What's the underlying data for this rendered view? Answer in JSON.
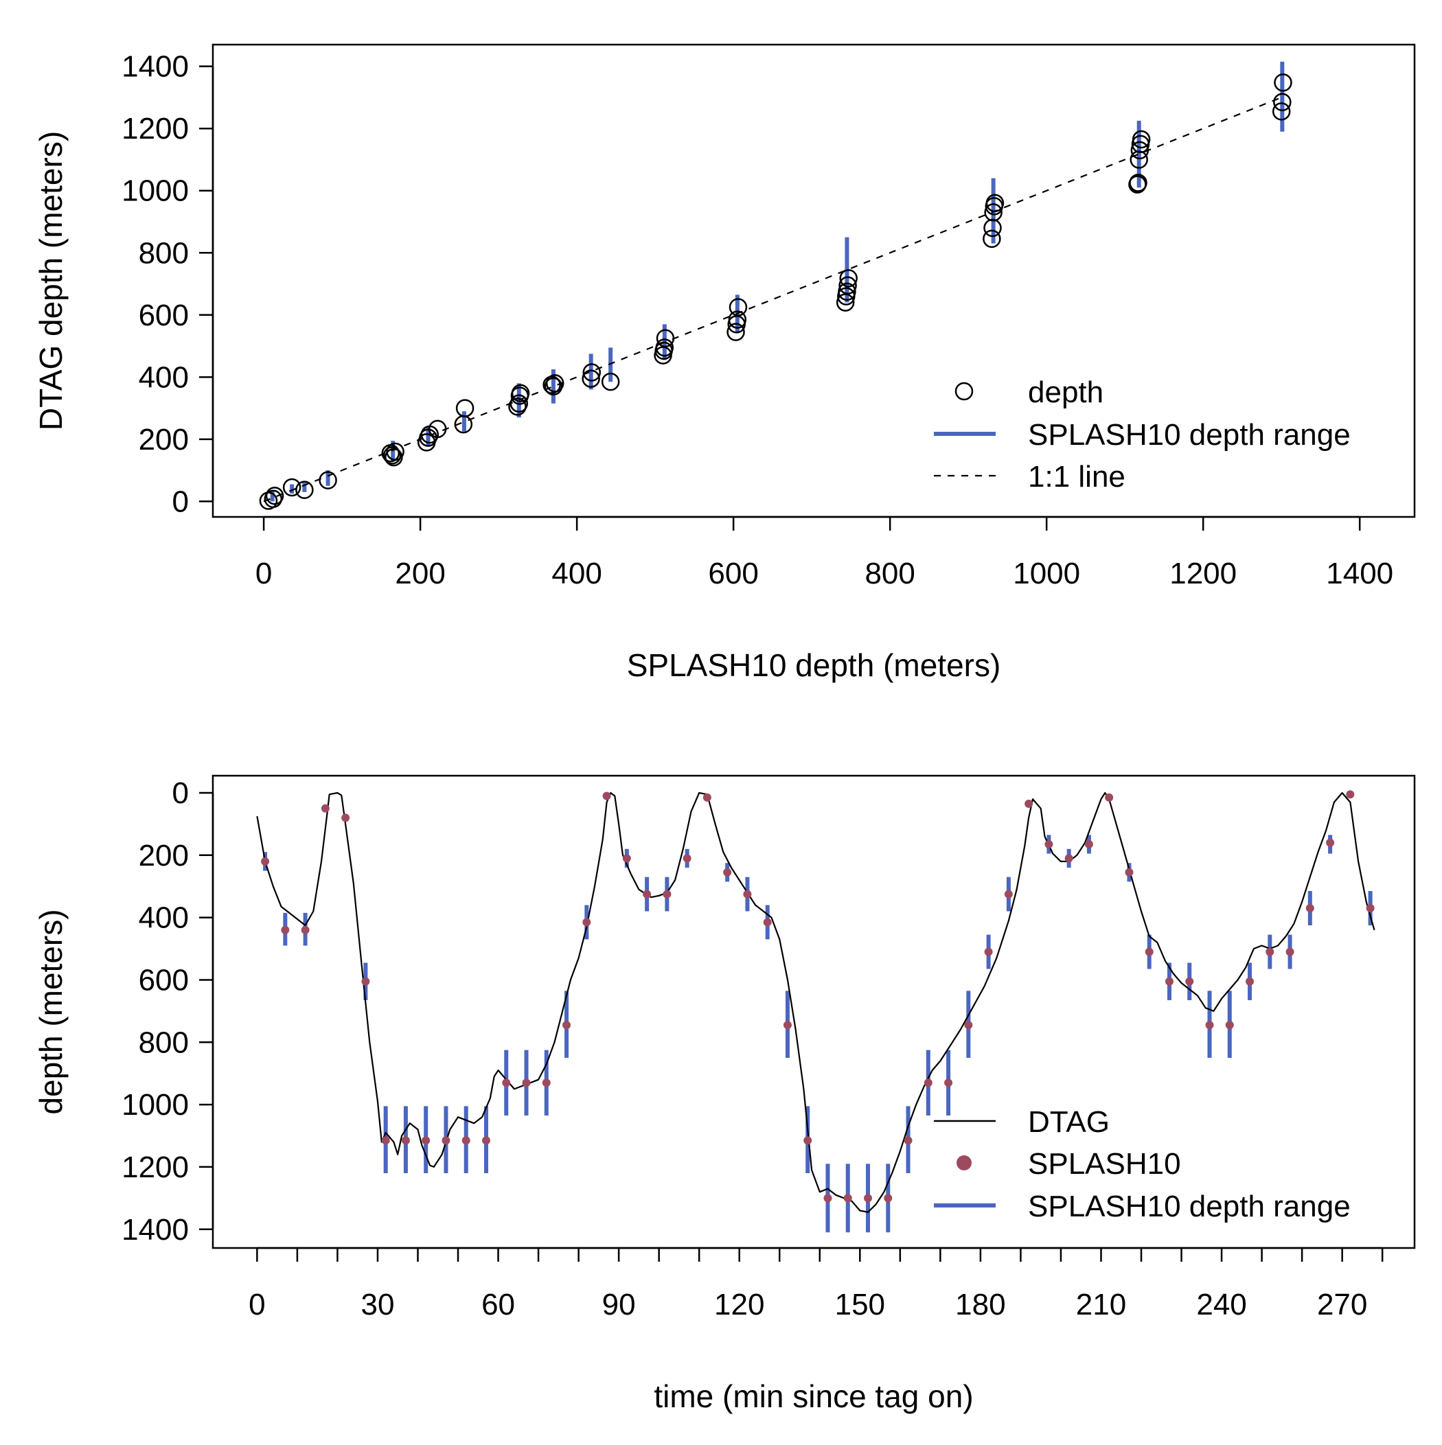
{
  "colors": {
    "range": "#4a66c0",
    "splash": "#9e4a5e",
    "ink": "#000000"
  },
  "chart_data": [
    {
      "type": "scatter",
      "xlabel": "SPLASH10 depth (meters)",
      "ylabel": "DTAG depth (meters)",
      "xlim": [
        -65,
        1470
      ],
      "ylim": [
        -50,
        1470
      ],
      "xticks": [
        0,
        200,
        400,
        600,
        800,
        1000,
        1200,
        1400
      ],
      "yticks": [
        0,
        200,
        400,
        600,
        800,
        1000,
        1200,
        1400
      ],
      "legend": {
        "position": "bottom-right",
        "entries": [
          "depth",
          "SPLASH10 depth range",
          "1:1 line"
        ]
      },
      "grid": false,
      "one_to_one_line": true,
      "points": [
        [
          6,
          2
        ],
        [
          12,
          8
        ],
        [
          14,
          18
        ],
        [
          36,
          45
        ],
        [
          52,
          37
        ],
        [
          82,
          68
        ],
        [
          162,
          155
        ],
        [
          164,
          148
        ],
        [
          166,
          142
        ],
        [
          168,
          160
        ],
        [
          208,
          190
        ],
        [
          210,
          205
        ],
        [
          212,
          215
        ],
        [
          222,
          233
        ],
        [
          255,
          248
        ],
        [
          257,
          300
        ],
        [
          324,
          305
        ],
        [
          326,
          315
        ],
        [
          327,
          340
        ],
        [
          328,
          348
        ],
        [
          368,
          375
        ],
        [
          370,
          370
        ],
        [
          372,
          380
        ],
        [
          418,
          395
        ],
        [
          419,
          415
        ],
        [
          443,
          385
        ],
        [
          510,
          470
        ],
        [
          511,
          485
        ],
        [
          512,
          495
        ],
        [
          513,
          525
        ],
        [
          603,
          545
        ],
        [
          604,
          570
        ],
        [
          605,
          585
        ],
        [
          606,
          625
        ],
        [
          743,
          640
        ],
        [
          744,
          660
        ],
        [
          745,
          675
        ],
        [
          746,
          695
        ],
        [
          747,
          718
        ],
        [
          930,
          845
        ],
        [
          931,
          880
        ],
        [
          932,
          930
        ],
        [
          933,
          950
        ],
        [
          934,
          960
        ],
        [
          1116,
          1020
        ],
        [
          1117,
          1025
        ],
        [
          1118,
          1100
        ],
        [
          1119,
          1130
        ],
        [
          1120,
          1150
        ],
        [
          1121,
          1165
        ],
        [
          1300,
          1255
        ],
        [
          1301,
          1285
        ],
        [
          1302,
          1348
        ]
      ],
      "ranges": [
        {
          "x": 11,
          "lo": 0,
          "hi": 35
        },
        {
          "x": 36,
          "lo": 25,
          "hi": 55
        },
        {
          "x": 52,
          "lo": 30,
          "hi": 60
        },
        {
          "x": 82,
          "lo": 50,
          "hi": 100
        },
        {
          "x": 165,
          "lo": 130,
          "hi": 195
        },
        {
          "x": 210,
          "lo": 180,
          "hi": 240
        },
        {
          "x": 256,
          "lo": 225,
          "hi": 290
        },
        {
          "x": 326,
          "lo": 270,
          "hi": 380
        },
        {
          "x": 370,
          "lo": 315,
          "hi": 425
        },
        {
          "x": 418,
          "lo": 360,
          "hi": 475
        },
        {
          "x": 443,
          "lo": 385,
          "hi": 495
        },
        {
          "x": 512,
          "lo": 455,
          "hi": 570
        },
        {
          "x": 605,
          "lo": 545,
          "hi": 665
        },
        {
          "x": 745,
          "lo": 640,
          "hi": 850
        },
        {
          "x": 932,
          "lo": 830,
          "hi": 1040
        },
        {
          "x": 1118,
          "lo": 1010,
          "hi": 1225
        },
        {
          "x": 1301,
          "lo": 1190,
          "hi": 1415
        }
      ]
    },
    {
      "type": "line",
      "xlabel": "time (min since tag on)",
      "ylabel": "depth (meters)",
      "xlim": [
        -11,
        288
      ],
      "ylim": [
        1460,
        -55
      ],
      "xticks": [
        0,
        30,
        60,
        90,
        120,
        150,
        180,
        210,
        240,
        270
      ],
      "yticks": [
        0,
        200,
        400,
        600,
        800,
        1000,
        1200,
        1400
      ],
      "minor_xtick_step": 10,
      "legend": {
        "position": "bottom-right",
        "entries": [
          "DTAG",
          "SPLASH10",
          "SPLASH10 depth range"
        ]
      },
      "grid": false,
      "dtag": [
        [
          0,
          75
        ],
        [
          2,
          220
        ],
        [
          4,
          300
        ],
        [
          6,
          365
        ],
        [
          8,
          385
        ],
        [
          10,
          405
        ],
        [
          12,
          425
        ],
        [
          14,
          380
        ],
        [
          16,
          220
        ],
        [
          17.5,
          60
        ],
        [
          18,
          5
        ],
        [
          20,
          0
        ],
        [
          21,
          8
        ],
        [
          22,
          100
        ],
        [
          24,
          290
        ],
        [
          26,
          550
        ],
        [
          28,
          800
        ],
        [
          30,
          990
        ],
        [
          31,
          1120
        ],
        [
          32,
          1090
        ],
        [
          34,
          1120
        ],
        [
          35,
          1160
        ],
        [
          36,
          1100
        ],
        [
          38,
          1060
        ],
        [
          40,
          1080
        ],
        [
          41,
          1130
        ],
        [
          43,
          1195
        ],
        [
          44,
          1200
        ],
        [
          46,
          1160
        ],
        [
          48,
          1080
        ],
        [
          50,
          1040
        ],
        [
          52,
          1050
        ],
        [
          54,
          1060
        ],
        [
          56,
          1040
        ],
        [
          58,
          980
        ],
        [
          59,
          910
        ],
        [
          60,
          890
        ],
        [
          62,
          920
        ],
        [
          64,
          950
        ],
        [
          66,
          940
        ],
        [
          68,
          930
        ],
        [
          70,
          920
        ],
        [
          72,
          870
        ],
        [
          74,
          800
        ],
        [
          76,
          700
        ],
        [
          78,
          600
        ],
        [
          80,
          530
        ],
        [
          82,
          430
        ],
        [
          84,
          300
        ],
        [
          86,
          150
        ],
        [
          87,
          30
        ],
        [
          88,
          0
        ],
        [
          89,
          10
        ],
        [
          90,
          100
        ],
        [
          91,
          200
        ],
        [
          93,
          260
        ],
        [
          95,
          310
        ],
        [
          98,
          335
        ],
        [
          100,
          330
        ],
        [
          102,
          320
        ],
        [
          104,
          280
        ],
        [
          106,
          180
        ],
        [
          108,
          60
        ],
        [
          110,
          0
        ],
        [
          112,
          5
        ],
        [
          114,
          100
        ],
        [
          116,
          190
        ],
        [
          118,
          240
        ],
        [
          120,
          280
        ],
        [
          122,
          320
        ],
        [
          124,
          360
        ],
        [
          126,
          380
        ],
        [
          128,
          400
        ],
        [
          130,
          470
        ],
        [
          132,
          600
        ],
        [
          134,
          760
        ],
        [
          136,
          950
        ],
        [
          137,
          1080
        ],
        [
          138,
          1210
        ],
        [
          140,
          1280
        ],
        [
          142,
          1270
        ],
        [
          144,
          1290
        ],
        [
          146,
          1300
        ],
        [
          148,
          1310
        ],
        [
          150,
          1340
        ],
        [
          152,
          1345
        ],
        [
          154,
          1320
        ],
        [
          156,
          1280
        ],
        [
          158,
          1220
        ],
        [
          160,
          1150
        ],
        [
          162,
          1070
        ],
        [
          164,
          1000
        ],
        [
          166,
          940
        ],
        [
          168,
          890
        ],
        [
          170,
          860
        ],
        [
          172,
          820
        ],
        [
          175,
          760
        ],
        [
          178,
          690
        ],
        [
          181,
          620
        ],
        [
          184,
          530
        ],
        [
          187,
          410
        ],
        [
          189,
          310
        ],
        [
          191,
          170
        ],
        [
          192,
          80
        ],
        [
          193,
          20
        ],
        [
          195,
          50
        ],
        [
          196,
          140
        ],
        [
          198,
          195
        ],
        [
          200,
          220
        ],
        [
          202,
          220
        ],
        [
          204,
          200
        ],
        [
          206,
          160
        ],
        [
          208,
          90
        ],
        [
          210,
          20
        ],
        [
          211,
          0
        ],
        [
          212,
          20
        ],
        [
          214,
          110
        ],
        [
          216,
          200
        ],
        [
          218,
          290
        ],
        [
          220,
          380
        ],
        [
          222,
          460
        ],
        [
          224,
          480
        ],
        [
          226,
          540
        ],
        [
          228,
          580
        ],
        [
          230,
          610
        ],
        [
          232,
          630
        ],
        [
          234,
          650
        ],
        [
          236,
          690
        ],
        [
          238,
          700
        ],
        [
          240,
          660
        ],
        [
          242,
          630
        ],
        [
          244,
          600
        ],
        [
          246,
          560
        ],
        [
          248,
          500
        ],
        [
          250,
          490
        ],
        [
          252,
          500
        ],
        [
          254,
          490
        ],
        [
          256,
          460
        ],
        [
          258,
          420
        ],
        [
          260,
          350
        ],
        [
          262,
          270
        ],
        [
          264,
          190
        ],
        [
          266,
          120
        ],
        [
          268,
          30
        ],
        [
          270,
          0
        ],
        [
          272,
          30
        ],
        [
          274,
          220
        ],
        [
          276,
          350
        ],
        [
          278,
          440
        ]
      ],
      "splash10": [
        {
          "t": 2,
          "depth": 220,
          "lo": 190,
          "hi": 250
        },
        {
          "t": 7,
          "depth": 440,
          "lo": 385,
          "hi": 490
        },
        {
          "t": 12,
          "depth": 440,
          "lo": 385,
          "hi": 490
        },
        {
          "t": 17,
          "depth": 50,
          "lo": 50,
          "hi": 50
        },
        {
          "t": 22,
          "depth": 80,
          "lo": 80,
          "hi": 80
        },
        {
          "t": 27,
          "depth": 605,
          "lo": 545,
          "hi": 665
        },
        {
          "t": 32,
          "depth": 1115,
          "lo": 1005,
          "hi": 1220
        },
        {
          "t": 37,
          "depth": 1115,
          "lo": 1005,
          "hi": 1220
        },
        {
          "t": 42,
          "depth": 1115,
          "lo": 1005,
          "hi": 1220
        },
        {
          "t": 47,
          "depth": 1115,
          "lo": 1005,
          "hi": 1220
        },
        {
          "t": 52,
          "depth": 1115,
          "lo": 1005,
          "hi": 1220
        },
        {
          "t": 57,
          "depth": 1115,
          "lo": 1005,
          "hi": 1220
        },
        {
          "t": 62,
          "depth": 930,
          "lo": 825,
          "hi": 1035
        },
        {
          "t": 67,
          "depth": 930,
          "lo": 825,
          "hi": 1035
        },
        {
          "t": 72,
          "depth": 930,
          "lo": 825,
          "hi": 1035
        },
        {
          "t": 77,
          "depth": 745,
          "lo": 635,
          "hi": 850
        },
        {
          "t": 82,
          "depth": 415,
          "lo": 360,
          "hi": 470
        },
        {
          "t": 87,
          "depth": 10,
          "lo": 10,
          "hi": 10
        },
        {
          "t": 92,
          "depth": 210,
          "lo": 180,
          "hi": 240
        },
        {
          "t": 97,
          "depth": 325,
          "lo": 270,
          "hi": 380
        },
        {
          "t": 102,
          "depth": 325,
          "lo": 270,
          "hi": 380
        },
        {
          "t": 107,
          "depth": 210,
          "lo": 180,
          "hi": 240
        },
        {
          "t": 112,
          "depth": 15,
          "lo": 15,
          "hi": 15
        },
        {
          "t": 117,
          "depth": 255,
          "lo": 225,
          "hi": 285
        },
        {
          "t": 122,
          "depth": 325,
          "lo": 270,
          "hi": 380
        },
        {
          "t": 127,
          "depth": 415,
          "lo": 360,
          "hi": 470
        },
        {
          "t": 132,
          "depth": 745,
          "lo": 635,
          "hi": 850
        },
        {
          "t": 137,
          "depth": 1115,
          "lo": 1005,
          "hi": 1220
        },
        {
          "t": 142,
          "depth": 1300,
          "lo": 1190,
          "hi": 1410
        },
        {
          "t": 147,
          "depth": 1300,
          "lo": 1190,
          "hi": 1410
        },
        {
          "t": 152,
          "depth": 1300,
          "lo": 1190,
          "hi": 1410
        },
        {
          "t": 157,
          "depth": 1300,
          "lo": 1190,
          "hi": 1410
        },
        {
          "t": 162,
          "depth": 1115,
          "lo": 1005,
          "hi": 1220
        },
        {
          "t": 167,
          "depth": 930,
          "lo": 825,
          "hi": 1035
        },
        {
          "t": 172,
          "depth": 930,
          "lo": 825,
          "hi": 1035
        },
        {
          "t": 177,
          "depth": 745,
          "lo": 635,
          "hi": 850
        },
        {
          "t": 182,
          "depth": 510,
          "lo": 455,
          "hi": 565
        },
        {
          "t": 187,
          "depth": 325,
          "lo": 270,
          "hi": 380
        },
        {
          "t": 192,
          "depth": 35,
          "lo": 35,
          "hi": 35
        },
        {
          "t": 197,
          "depth": 165,
          "lo": 135,
          "hi": 195
        },
        {
          "t": 202,
          "depth": 210,
          "lo": 180,
          "hi": 240
        },
        {
          "t": 207,
          "depth": 165,
          "lo": 135,
          "hi": 195
        },
        {
          "t": 212,
          "depth": 15,
          "lo": 15,
          "hi": 15
        },
        {
          "t": 217,
          "depth": 255,
          "lo": 225,
          "hi": 285
        },
        {
          "t": 222,
          "depth": 510,
          "lo": 455,
          "hi": 565
        },
        {
          "t": 227,
          "depth": 605,
          "lo": 545,
          "hi": 665
        },
        {
          "t": 232,
          "depth": 605,
          "lo": 545,
          "hi": 665
        },
        {
          "t": 237,
          "depth": 745,
          "lo": 635,
          "hi": 850
        },
        {
          "t": 242,
          "depth": 745,
          "lo": 635,
          "hi": 850
        },
        {
          "t": 247,
          "depth": 605,
          "lo": 545,
          "hi": 665
        },
        {
          "t": 252,
          "depth": 510,
          "lo": 455,
          "hi": 565
        },
        {
          "t": 257,
          "depth": 510,
          "lo": 455,
          "hi": 565
        },
        {
          "t": 262,
          "depth": 370,
          "lo": 315,
          "hi": 425
        },
        {
          "t": 267,
          "depth": 160,
          "lo": 135,
          "hi": 195
        },
        {
          "t": 272,
          "depth": 5,
          "lo": 5,
          "hi": 5
        },
        {
          "t": 277,
          "depth": 370,
          "lo": 315,
          "hi": 425
        }
      ]
    }
  ]
}
